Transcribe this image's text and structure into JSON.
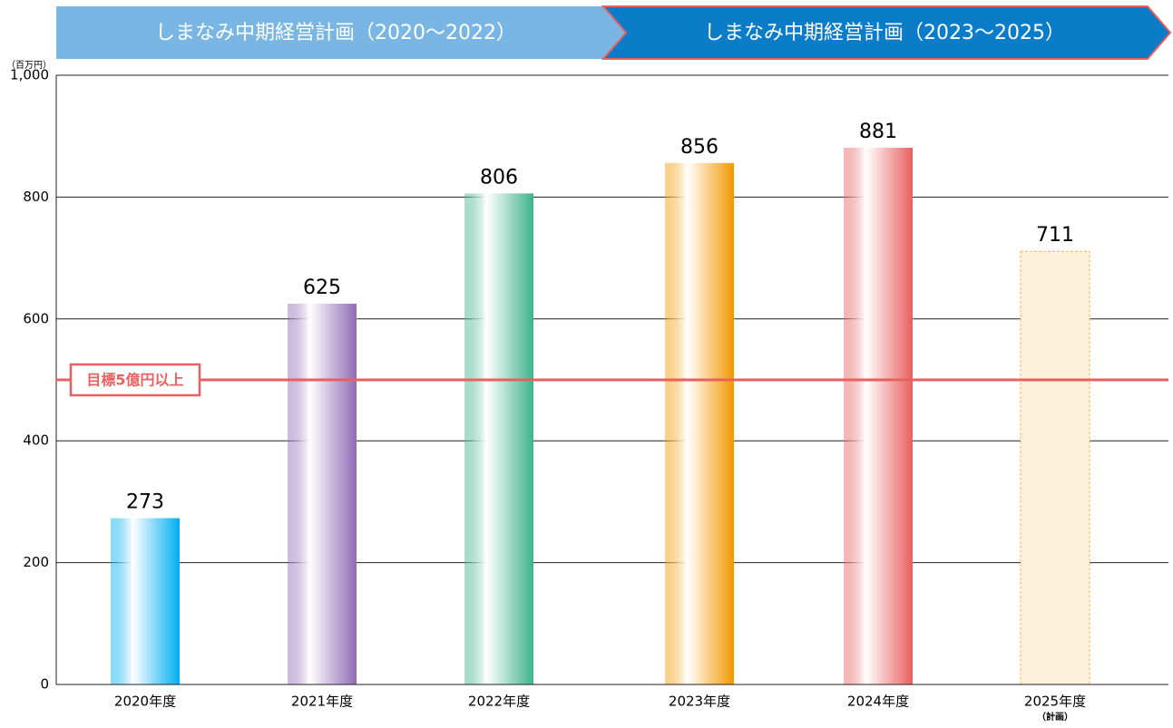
{
  "chart_data": {
    "type": "bar",
    "banners": [
      "しまなみ中期経営計画（2020〜2022）",
      "しまなみ中期経営計画（2023〜2025）"
    ],
    "unit": "（百万円）",
    "categories": [
      "2020年度",
      "2021年度",
      "2022年度",
      "2023年度",
      "2024年度",
      "2025年度"
    ],
    "planned_note": "（計画）",
    "values": [
      273,
      625,
      806,
      856,
      881,
      711
    ],
    "colors": [
      "#00aeef",
      "#8e6bb5",
      "#3fb38c",
      "#f39800",
      "#e8605f",
      "#f5b54a"
    ],
    "planned": [
      false,
      false,
      false,
      false,
      false,
      true
    ],
    "ylim": [
      0,
      1000
    ],
    "yticks": [
      0,
      200,
      400,
      600,
      800,
      {
        "value": 1000,
        "label": "1,000"
      }
    ],
    "grid": true,
    "target": {
      "value": 500,
      "label": "目標5億円以上",
      "color": "#e8605f"
    }
  }
}
